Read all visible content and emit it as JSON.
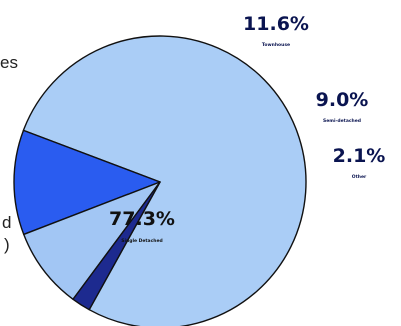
{
  "chart_data": {
    "type": "pie",
    "categories": [
      "Single Detached",
      "Townhouse",
      "Semi-detached",
      "Other"
    ],
    "values": [
      77.3,
      11.6,
      9.0,
      2.1
    ],
    "value_labels": [
      "77.3%",
      "11.6%",
      "9.0%",
      "2.1%"
    ],
    "colors": [
      "#aacdf6",
      "#2a5cf0",
      "#a2c6f4",
      "#1d2a8f"
    ],
    "title": "",
    "legend": "none"
  },
  "edge_text": {
    "left_top": "es",
    "left_mid": "d",
    "left_low": ")"
  }
}
